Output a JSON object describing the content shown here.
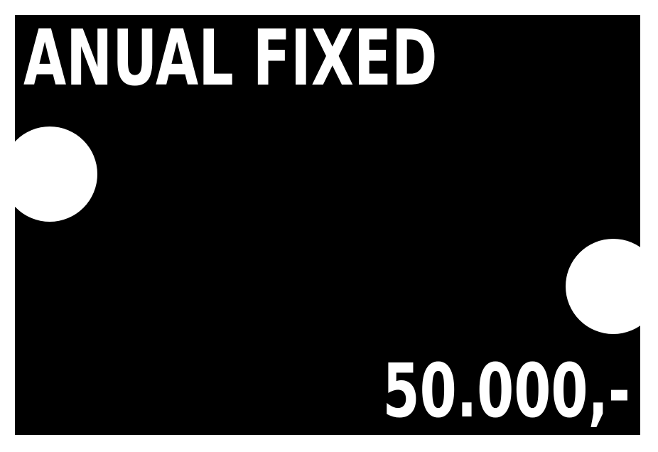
{
  "card": {
    "title": "ANUAL FIXED",
    "price": "50.000,-"
  },
  "colors": {
    "background": "#000000",
    "foreground": "#ffffff",
    "page": "#ffffff"
  }
}
